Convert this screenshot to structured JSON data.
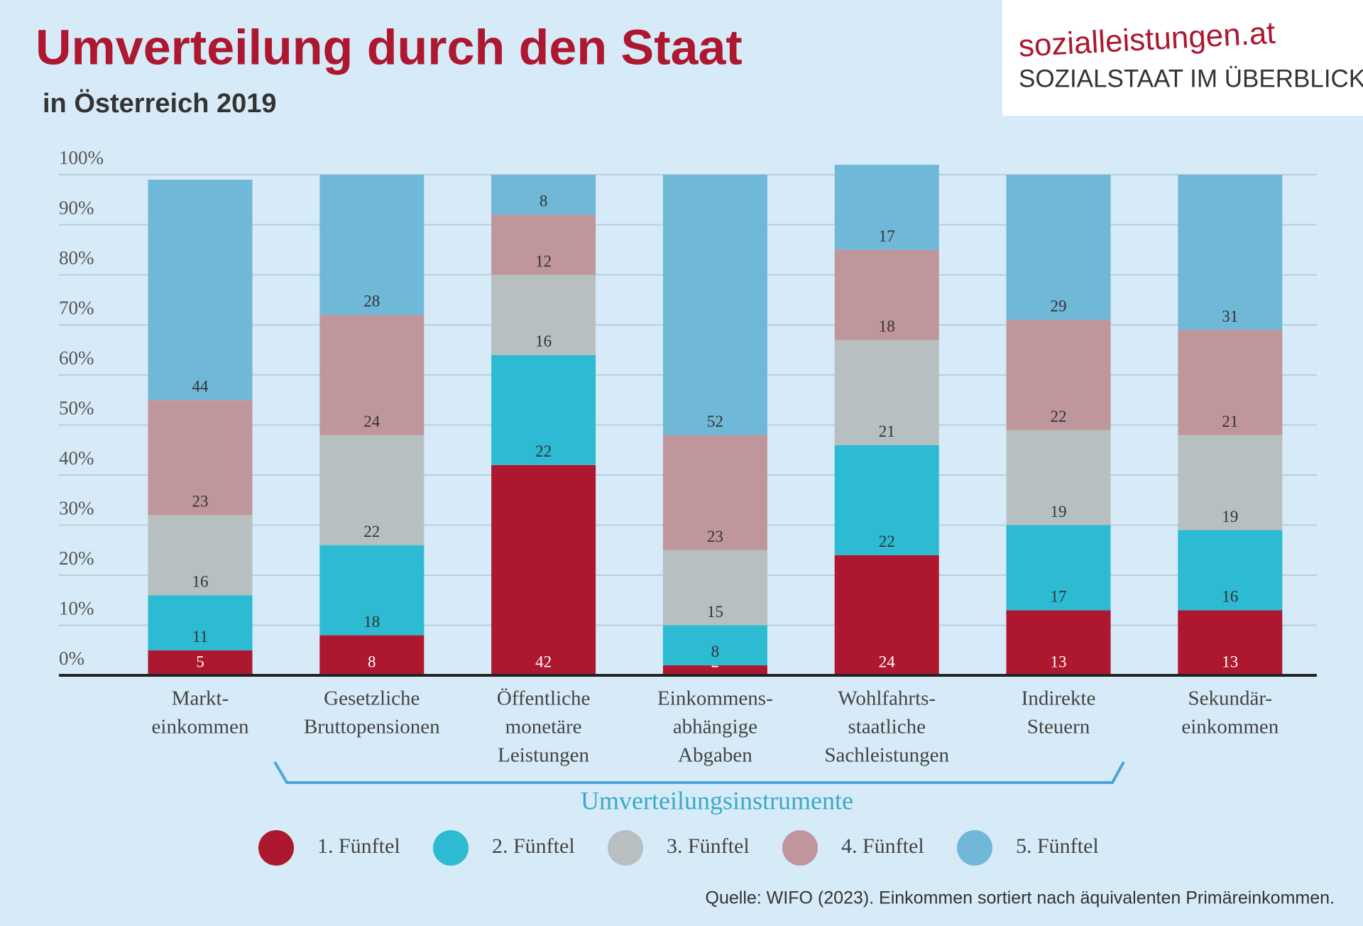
{
  "chart_data": {
    "type": "stacked-bar",
    "title": "Umverteilung durch den Staat",
    "subtitle": "in Österreich 2019",
    "brand": "sozialleistungen.at",
    "brand_tagline": "SOZIALSTAAT IM ÜBERBLICK",
    "group_label": "Umverteilungsinstrumente",
    "source": "Quelle: WIFO (2023). Einkommen sortiert nach äquivalenten Primäreinkommen.",
    "categories": [
      [
        "Markt-",
        "einkommen"
      ],
      [
        "Gesetzliche",
        "Bruttopensionen"
      ],
      [
        "Öffentliche",
        "monetäre",
        "Leistungen"
      ],
      [
        "Einkommens-",
        "abhängige",
        "Abgaben"
      ],
      [
        "Wohlfahrts-",
        "staatliche",
        "Sachleistungen"
      ],
      [
        "Indirekte",
        "Steuern"
      ],
      [
        "Sekundär-",
        "einkommen"
      ]
    ],
    "series": [
      {
        "name": "1. Fünftel",
        "color": "#ad1730",
        "values": [
          5,
          8,
          42,
          2,
          24,
          13,
          13
        ]
      },
      {
        "name": "2. Fünftel",
        "color": "#2dbad3",
        "values": [
          11,
          18,
          22,
          8,
          22,
          17,
          16
        ]
      },
      {
        "name": "3. Fünftel",
        "color": "#b8bfc1",
        "values": [
          16,
          22,
          16,
          15,
          21,
          19,
          19
        ]
      },
      {
        "name": "4. Fünftel",
        "color": "#bf969b",
        "values": [
          23,
          24,
          12,
          23,
          18,
          22,
          21
        ]
      },
      {
        "name": "5. Fünftel",
        "color": "#70b8d8",
        "values": [
          44,
          28,
          8,
          52,
          17,
          29,
          31
        ]
      }
    ],
    "ylim": [
      0,
      100
    ],
    "yticks": [
      {
        "value": 0,
        "label": "0%"
      },
      {
        "value": 10,
        "label": "10%"
      },
      {
        "value": 20,
        "label": "20%"
      },
      {
        "value": 30,
        "label": "30%"
      },
      {
        "value": 40,
        "label": "40%"
      },
      {
        "value": 50,
        "label": "50%"
      },
      {
        "value": 60,
        "label": "60%"
      },
      {
        "value": 70,
        "label": "70%"
      },
      {
        "value": 80,
        "label": "80%"
      },
      {
        "value": 90,
        "label": "90%"
      },
      {
        "value": 100,
        "label": "100%"
      }
    ],
    "grid": true
  }
}
